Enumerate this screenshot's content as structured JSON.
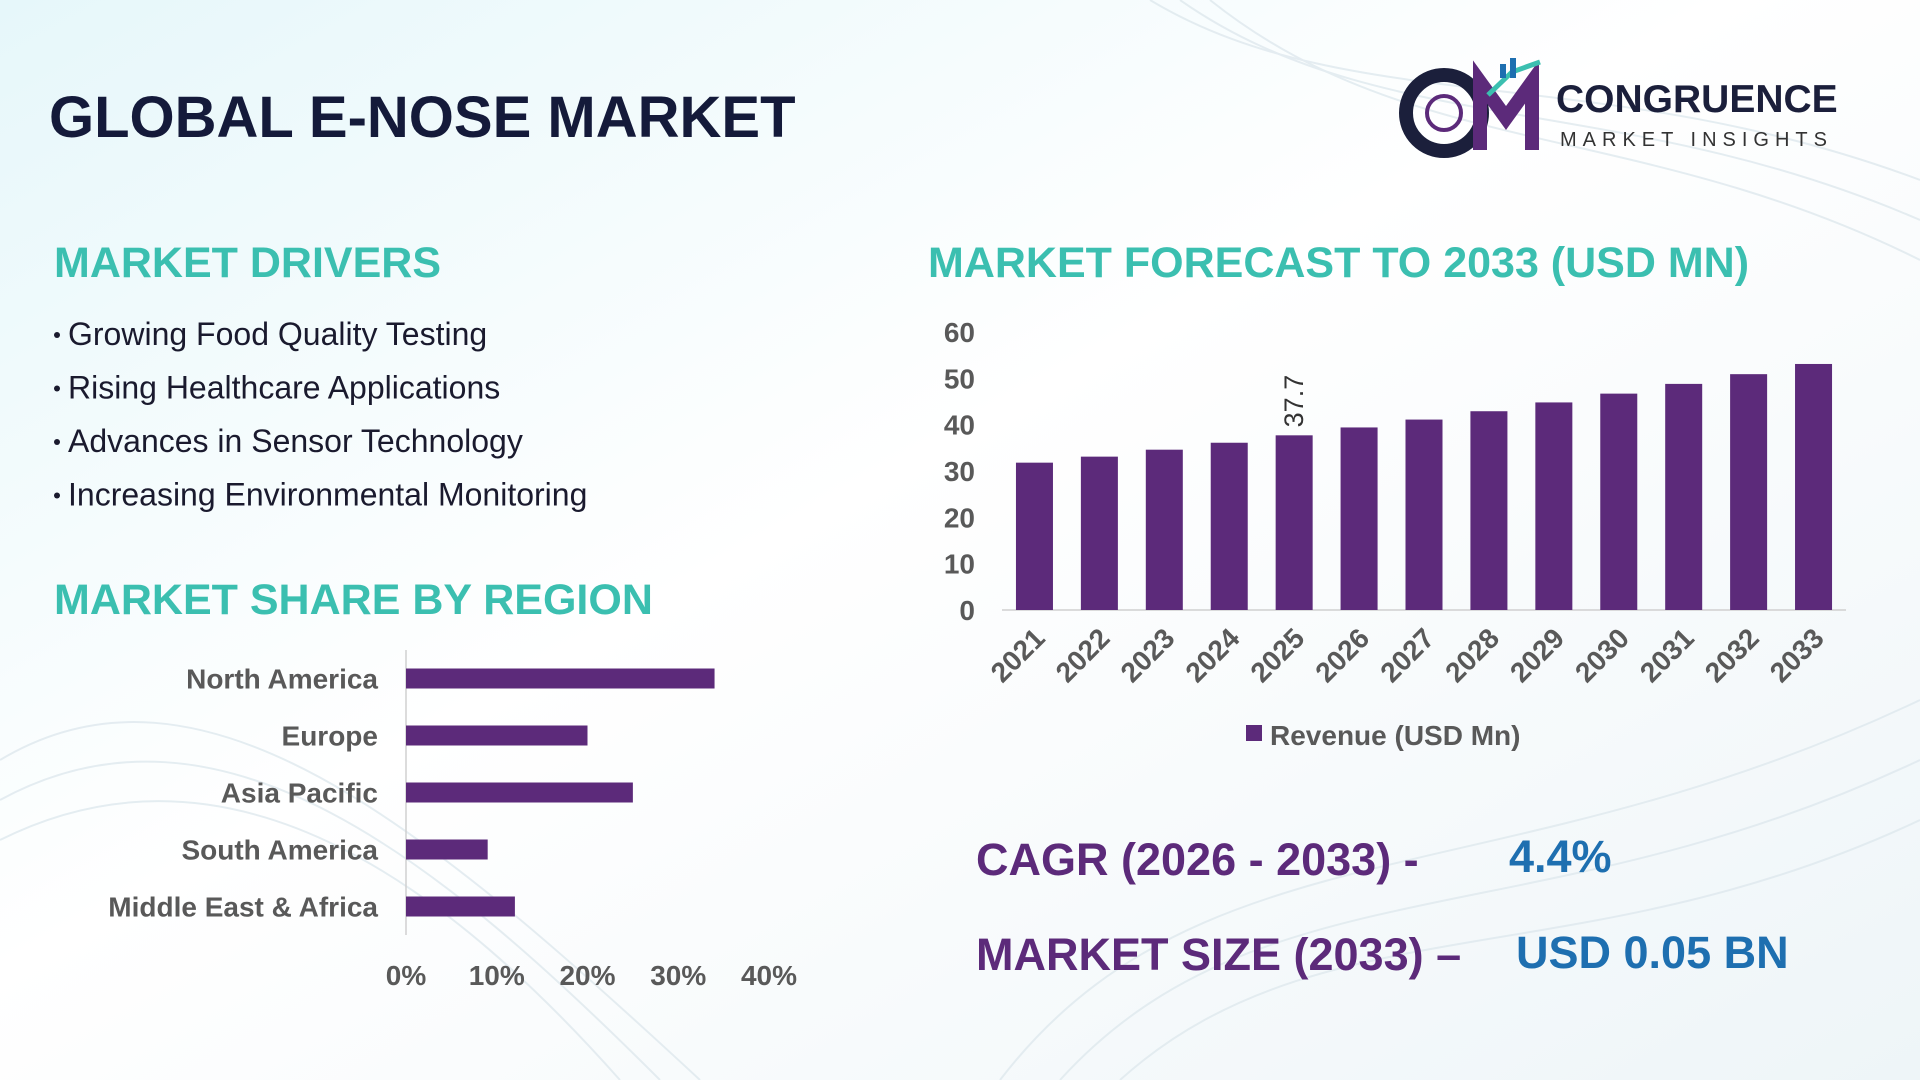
{
  "header": {
    "title": "GLOBAL E-NOSE MARKET",
    "brand": "CONGRUENCE",
    "tagline": "MARKET INSIGHTS"
  },
  "drivers": {
    "title": "MARKET DRIVERS",
    "items": [
      "Growing Food Quality Testing",
      "Rising Healthcare Applications",
      "Advances in Sensor Technology",
      "Increasing Environmental Monitoring"
    ]
  },
  "chart_data": [
    {
      "type": "bar",
      "orientation": "horizontal",
      "title": "MARKET SHARE BY REGION",
      "categories": [
        "North America",
        "Europe",
        "Asia Pacific",
        "South America",
        "Middle East & Africa"
      ],
      "values": [
        34,
        20,
        25,
        9,
        12
      ],
      "color": "#5c2a7a",
      "xlim": [
        0,
        40
      ],
      "xticks": [
        {
          "value": 0,
          "label": "0%"
        },
        {
          "value": 10,
          "label": "10%"
        },
        {
          "value": 20,
          "label": "20%"
        },
        {
          "value": 30,
          "label": "30%"
        },
        {
          "value": 40,
          "label": "40%"
        }
      ]
    },
    {
      "type": "bar",
      "orientation": "vertical",
      "title": "MARKET FORECAST TO 2033 (USD MN)",
      "categories": [
        "2021",
        "2022",
        "2023",
        "2024",
        "2025",
        "2026",
        "2027",
        "2028",
        "2029",
        "2030",
        "2031",
        "2032",
        "2033"
      ],
      "series": [
        {
          "name": "Revenue (USD Mn)",
          "color": "#5c2a7a",
          "values": [
            31.8,
            33.1,
            34.6,
            36.1,
            37.7,
            39.4,
            41.1,
            42.9,
            44.8,
            46.7,
            48.8,
            50.9,
            53.1
          ]
        }
      ],
      "value_label_shown": [
        false,
        false,
        false,
        false,
        true,
        false,
        false,
        false,
        false,
        false,
        false,
        false,
        false
      ],
      "ylim": [
        0,
        60
      ],
      "yticks": [
        0,
        10,
        20,
        30,
        40,
        50,
        60
      ],
      "legend": "bottom"
    }
  ],
  "summary": {
    "cagr_label": "CAGR (2026 - 2033) -",
    "cagr_value": "4.4%",
    "size_label": "MARKET SIZE (2033) –",
    "size_value": "USD 0.05 BN"
  }
}
